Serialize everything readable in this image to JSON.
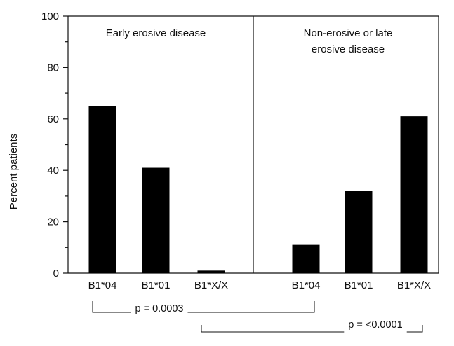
{
  "chart_data": {
    "type": "bar",
    "title": "",
    "xlabel": "",
    "ylabel": "Percent patients",
    "ylim": [
      0,
      100
    ],
    "yticks": [
      0,
      20,
      40,
      60,
      80,
      100
    ],
    "grid": false,
    "legend": "none",
    "bar_color": "#000000",
    "groups": [
      {
        "label_lines": [
          "Early erosive disease"
        ],
        "categories": [
          "B1*04",
          "B1*01",
          "B1*X/X"
        ],
        "values": [
          65,
          41,
          1
        ]
      },
      {
        "label_lines": [
          "Non-erosive or late",
          "erosive disease"
        ],
        "categories": [
          "B1*04",
          "B1*01",
          "B1*X/X"
        ],
        "values": [
          11,
          32,
          61
        ]
      }
    ],
    "comparisons": [
      {
        "label": "p = 0.0003",
        "from": [
          "0",
          "0"
        ],
        "to": [
          "1",
          "0"
        ]
      },
      {
        "label": "p = <0.0001",
        "from": [
          "0",
          "2"
        ],
        "to": [
          "1",
          "2"
        ]
      }
    ]
  }
}
